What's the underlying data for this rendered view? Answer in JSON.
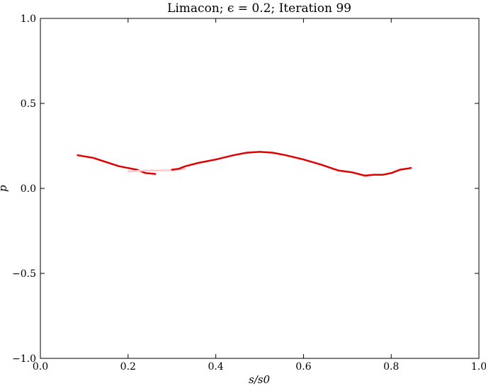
{
  "chart_data": {
    "type": "line",
    "title": "Limacon; ϵ = 0.2; Iteration 99",
    "xlabel": "s/s0",
    "ylabel": "p",
    "xlim": [
      0.0,
      1.0
    ],
    "ylim": [
      -1.0,
      1.0
    ],
    "xticks": [
      0.0,
      0.2,
      0.4,
      0.6,
      0.8,
      1.0
    ],
    "xtick_labels": [
      "0.0",
      "0.2",
      "0.4",
      "0.6",
      "0.8",
      "1.0"
    ],
    "yticks": [
      -1.0,
      -0.5,
      0.0,
      0.5,
      1.0
    ],
    "ytick_labels": [
      "−1.0",
      "−0.5",
      "0.0",
      "0.5",
      "1.0"
    ],
    "grid": false,
    "series": [
      {
        "color": "#e00000",
        "x": [
          0.085,
          0.12,
          0.15,
          0.18,
          0.2,
          0.22,
          0.24,
          0.262
        ],
        "y": [
          0.195,
          0.18,
          0.155,
          0.13,
          0.12,
          0.11,
          0.09,
          0.085
        ]
      },
      {
        "color": "#ffc8c8",
        "x": [
          0.2,
          0.24,
          0.27,
          0.3,
          0.33
        ],
        "y": [
          0.1,
          0.105,
          0.105,
          0.108,
          0.115
        ]
      },
      {
        "color": "#e00000",
        "x": [
          0.3,
          0.315,
          0.33,
          0.36,
          0.4,
          0.44,
          0.47,
          0.5,
          0.53,
          0.56,
          0.6,
          0.64,
          0.68,
          0.71,
          0.74,
          0.76,
          0.78,
          0.8,
          0.82,
          0.845
        ],
        "y": [
          0.11,
          0.115,
          0.13,
          0.15,
          0.17,
          0.195,
          0.21,
          0.215,
          0.21,
          0.195,
          0.17,
          0.14,
          0.105,
          0.095,
          0.075,
          0.08,
          0.08,
          0.09,
          0.11,
          0.12
        ]
      }
    ]
  }
}
